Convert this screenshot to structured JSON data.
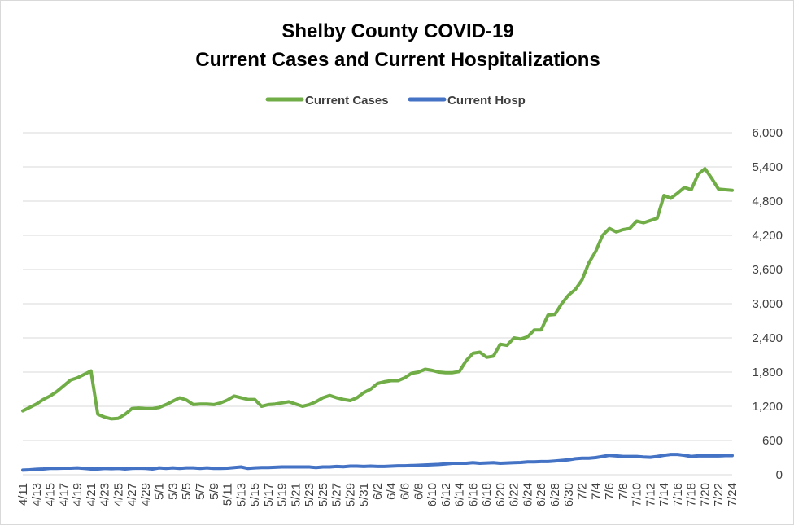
{
  "chart_data": {
    "type": "line",
    "title": "Shelby County COVID-19",
    "subtitle": "Current Cases and Current Hospitalizations",
    "xlabel": "",
    "ylabel": "",
    "y_axis_position": "right",
    "ylim": [
      0,
      6000
    ],
    "yticks": [
      "0",
      "600",
      "1,200",
      "1,800",
      "2,400",
      "3,000",
      "3,600",
      "4,200",
      "4,800",
      "5,400",
      "6,000"
    ],
    "grid": true,
    "legend": "top-center",
    "colors": {
      "cases": "#70ad47",
      "hosp": "#4472c4",
      "grid": "#d9d9d9"
    },
    "x": [
      "4/11",
      "4/12",
      "4/13",
      "4/14",
      "4/15",
      "4/16",
      "4/17",
      "4/18",
      "4/19",
      "4/20",
      "4/21",
      "4/22",
      "4/23",
      "4/24",
      "4/25",
      "4/26",
      "4/27",
      "4/28",
      "4/29",
      "4/30",
      "5/1",
      "5/2",
      "5/3",
      "5/4",
      "5/5",
      "5/6",
      "5/7",
      "5/8",
      "5/9",
      "5/10",
      "5/11",
      "5/12",
      "5/13",
      "5/14",
      "5/15",
      "5/16",
      "5/17",
      "5/18",
      "5/19",
      "5/20",
      "5/21",
      "5/22",
      "5/23",
      "5/24",
      "5/25",
      "5/26",
      "5/27",
      "5/28",
      "5/29",
      "5/30",
      "5/31",
      "6/1",
      "6/2",
      "6/3",
      "6/4",
      "6/5",
      "6/6",
      "6/7",
      "6/8",
      "6/9",
      "6/10",
      "6/11",
      "6/12",
      "6/13",
      "6/14",
      "6/15",
      "6/16",
      "6/17",
      "6/18",
      "6/19",
      "6/20",
      "6/21",
      "6/22",
      "6/23",
      "6/24",
      "6/25",
      "6/26",
      "6/27",
      "6/28",
      "6/29",
      "6/30",
      "7/1",
      "7/2",
      "7/3",
      "7/4",
      "7/5",
      "7/6",
      "7/7",
      "7/8",
      "7/9",
      "7/10",
      "7/11",
      "7/12",
      "7/13",
      "7/14",
      "7/15",
      "7/16",
      "7/17",
      "7/18",
      "7/19",
      "7/20",
      "7/21",
      "7/22",
      "7/23",
      "7/24"
    ],
    "x_tick_labels": [
      "4/11",
      "4/13",
      "4/15",
      "4/17",
      "4/19",
      "4/21",
      "4/23",
      "4/25",
      "4/27",
      "4/29",
      "5/1",
      "5/3",
      "5/5",
      "5/7",
      "5/9",
      "5/11",
      "5/13",
      "5/15",
      "5/17",
      "5/19",
      "5/21",
      "5/23",
      "5/25",
      "5/27",
      "5/29",
      "5/31",
      "6/2",
      "6/4",
      "6/6",
      "6/8",
      "6/10",
      "6/12",
      "6/14",
      "6/16",
      "6/18",
      "6/20",
      "6/22",
      "6/24",
      "6/26",
      "6/28",
      "6/30",
      "7/2",
      "7/4",
      "7/6",
      "7/8",
      "7/10",
      "7/12",
      "7/14",
      "7/16",
      "7/18",
      "7/20",
      "7/22",
      "7/24"
    ],
    "series": [
      {
        "name": "Current Cases",
        "color": "#70ad47",
        "values": [
          1120,
          1180,
          1240,
          1320,
          1380,
          1460,
          1560,
          1660,
          1700,
          1760,
          1820,
          1060,
          1010,
          980,
          990,
          1060,
          1160,
          1170,
          1160,
          1160,
          1180,
          1230,
          1290,
          1350,
          1310,
          1230,
          1240,
          1240,
          1230,
          1260,
          1310,
          1380,
          1350,
          1320,
          1320,
          1200,
          1230,
          1240,
          1260,
          1280,
          1240,
          1200,
          1230,
          1280,
          1350,
          1390,
          1350,
          1320,
          1300,
          1350,
          1440,
          1500,
          1600,
          1630,
          1650,
          1650,
          1700,
          1780,
          1800,
          1850,
          1830,
          1800,
          1790,
          1790,
          1810,
          2000,
          2130,
          2150,
          2060,
          2080,
          2290,
          2270,
          2400,
          2380,
          2420,
          2540,
          2540,
          2800,
          2810,
          3000,
          3150,
          3250,
          3420,
          3720,
          3920,
          4200,
          4320,
          4260,
          4300,
          4320,
          4450,
          4420,
          4460,
          4500,
          4900,
          4850,
          4940,
          5040,
          5000,
          5270,
          5370,
          5200,
          5010,
          5000,
          4990
        ]
      },
      {
        "name": "Current Hosp",
        "color": "#4472c4",
        "values": [
          80,
          85,
          95,
          100,
          110,
          110,
          115,
          115,
          120,
          110,
          100,
          100,
          110,
          105,
          110,
          100,
          110,
          115,
          110,
          100,
          120,
          110,
          120,
          110,
          120,
          120,
          110,
          120,
          110,
          110,
          115,
          125,
          135,
          110,
          120,
          125,
          125,
          130,
          135,
          135,
          135,
          135,
          135,
          125,
          135,
          135,
          145,
          140,
          150,
          150,
          145,
          150,
          145,
          145,
          150,
          155,
          155,
          160,
          165,
          170,
          175,
          180,
          190,
          200,
          200,
          200,
          210,
          200,
          205,
          210,
          200,
          205,
          210,
          215,
          225,
          225,
          230,
          230,
          240,
          250,
          260,
          280,
          290,
          290,
          300,
          320,
          340,
          330,
          320,
          320,
          320,
          310,
          305,
          320,
          340,
          355,
          355,
          340,
          320,
          330,
          330,
          330,
          330,
          335,
          335
        ]
      }
    ]
  }
}
